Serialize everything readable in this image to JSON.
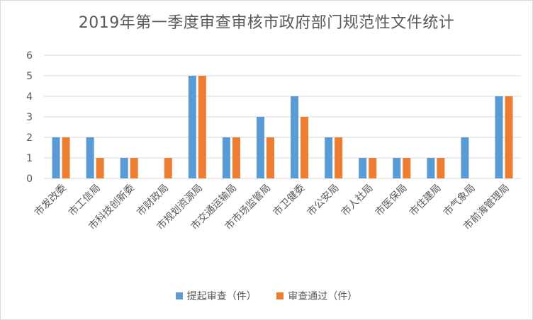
{
  "chart_data": {
    "type": "bar",
    "title": "2019年第一季度审查审核市政府部门规范性文件统计",
    "categories": [
      "市发改委",
      "市工信局",
      "市科技创新委",
      "市财政局",
      "市规划资源局",
      "市交通运输局",
      "市市场监管局",
      "市卫健委",
      "市公安局",
      "市人社局",
      "市医保局",
      "市住建局",
      "市气象局",
      "市前海管理局"
    ],
    "series": [
      {
        "name": "提起审查（件）",
        "values": [
          2,
          2,
          1,
          0,
          5,
          2,
          3,
          4,
          2,
          1,
          1,
          1,
          2,
          4
        ],
        "color": "#5b9bd5"
      },
      {
        "name": "审查通过（件）",
        "values": [
          2,
          1,
          1,
          1,
          5,
          2,
          2,
          3,
          2,
          1,
          1,
          1,
          0,
          4
        ],
        "color": "#ed7d31"
      }
    ],
    "yticks": [
      "0",
      "1",
      "2",
      "3",
      "4",
      "5",
      "6"
    ],
    "ylim": [
      0,
      6
    ],
    "grid": true,
    "legend_position": "bottom",
    "gridline_color": "#d9d9d9",
    "axis_text_color": "#595959"
  }
}
